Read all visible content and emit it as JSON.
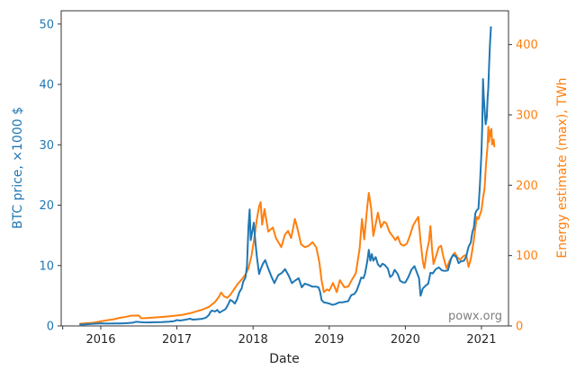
{
  "chart_data": {
    "type": "line",
    "title": "",
    "xlabel": "Date",
    "watermark": "powx.org",
    "grid": false,
    "legend": "none",
    "colors": {
      "btc": "#1f77b4",
      "energy": "#ff7f0e",
      "spine": "#343434",
      "x_tick_text": "#262626",
      "watermark": "#7f7f7f"
    },
    "axes": {
      "x": {
        "label": "Date",
        "lim": [
          2015.48,
          2021.355
        ],
        "tick_values": [
          2015.5,
          2016,
          2017,
          2018,
          2019,
          2020,
          2021
        ],
        "tick_labels": [
          "",
          "2016",
          "2017",
          "2018",
          "2019",
          "2020",
          "2021"
        ]
      },
      "left": {
        "label": "BTC price, ×1000 $",
        "color": "#1f77b4",
        "lim": [
          0,
          52.2
        ],
        "tick_values": [
          0,
          10,
          20,
          30,
          40,
          50
        ],
        "tick_labels": [
          "0",
          "10",
          "20",
          "30",
          "40",
          "50"
        ]
      },
      "right": {
        "label": "Energy estimate (max), TWh",
        "color": "#ff7f0e",
        "lim": [
          0,
          448
        ],
        "tick_values": [
          0,
          100,
          200,
          300,
          400
        ],
        "tick_labels": [
          "0",
          "100",
          "200",
          "300",
          "400"
        ]
      }
    },
    "series": [
      {
        "id": "energy",
        "name": "Energy estimate (max), TWh",
        "axis": "right",
        "color": "#ff7f0e",
        "points": [
          [
            2015.73,
            3
          ],
          [
            2015.82,
            4
          ],
          [
            2015.9,
            4.5
          ],
          [
            2016.0,
            6.5
          ],
          [
            2016.08,
            8
          ],
          [
            2016.17,
            9.5
          ],
          [
            2016.25,
            11.5
          ],
          [
            2016.33,
            13
          ],
          [
            2016.4,
            14.5
          ],
          [
            2016.5,
            14.8
          ],
          [
            2016.53,
            10.8
          ],
          [
            2016.62,
            11.3
          ],
          [
            2016.71,
            12
          ],
          [
            2016.8,
            12.8
          ],
          [
            2016.9,
            13.6
          ],
          [
            2017.0,
            14.8
          ],
          [
            2017.08,
            16
          ],
          [
            2017.17,
            18
          ],
          [
            2017.25,
            20.5
          ],
          [
            2017.33,
            23
          ],
          [
            2017.42,
            27
          ],
          [
            2017.5,
            34
          ],
          [
            2017.55,
            41
          ],
          [
            2017.58,
            47.5
          ],
          [
            2017.62,
            42
          ],
          [
            2017.66,
            40
          ],
          [
            2017.7,
            44
          ],
          [
            2017.75,
            52
          ],
          [
            2017.8,
            60
          ],
          [
            2017.85,
            66
          ],
          [
            2017.9,
            73
          ],
          [
            2017.94,
            82
          ],
          [
            2017.98,
            100
          ],
          [
            2018.02,
            128
          ],
          [
            2018.05,
            152
          ],
          [
            2018.08,
            170
          ],
          [
            2018.1,
            176
          ],
          [
            2018.12,
            144
          ],
          [
            2018.15,
            166
          ],
          [
            2018.2,
            134
          ],
          [
            2018.26,
            140
          ],
          [
            2018.3,
            125
          ],
          [
            2018.37,
            112
          ],
          [
            2018.42,
            130
          ],
          [
            2018.46,
            135
          ],
          [
            2018.5,
            125
          ],
          [
            2018.55,
            152
          ],
          [
            2018.58,
            140
          ],
          [
            2018.63,
            116
          ],
          [
            2018.68,
            112
          ],
          [
            2018.73,
            114
          ],
          [
            2018.78,
            119
          ],
          [
            2018.83,
            112
          ],
          [
            2018.87,
            91
          ],
          [
            2018.9,
            65
          ],
          [
            2018.93,
            48
          ],
          [
            2018.97,
            52
          ],
          [
            2019.0,
            50
          ],
          [
            2019.05,
            61
          ],
          [
            2019.1,
            48
          ],
          [
            2019.14,
            65
          ],
          [
            2019.2,
            55
          ],
          [
            2019.25,
            56
          ],
          [
            2019.3,
            66
          ],
          [
            2019.35,
            75
          ],
          [
            2019.4,
            110
          ],
          [
            2019.43,
            152
          ],
          [
            2019.46,
            123
          ],
          [
            2019.5,
            170
          ],
          [
            2019.52,
            189
          ],
          [
            2019.55,
            168
          ],
          [
            2019.58,
            128
          ],
          [
            2019.62,
            150
          ],
          [
            2019.64,
            161
          ],
          [
            2019.68,
            140
          ],
          [
            2019.72,
            148
          ],
          [
            2019.75,
            146
          ],
          [
            2019.79,
            134
          ],
          [
            2019.83,
            128
          ],
          [
            2019.87,
            122
          ],
          [
            2019.9,
            127
          ],
          [
            2019.94,
            116
          ],
          [
            2019.98,
            114
          ],
          [
            2020.02,
            117
          ],
          [
            2020.06,
            128
          ],
          [
            2020.1,
            142
          ],
          [
            2020.14,
            150
          ],
          [
            2020.17,
            155
          ],
          [
            2020.2,
            120
          ],
          [
            2020.23,
            92
          ],
          [
            2020.25,
            82
          ],
          [
            2020.28,
            105
          ],
          [
            2020.31,
            120
          ],
          [
            2020.33,
            142
          ],
          [
            2020.35,
            110
          ],
          [
            2020.37,
            88
          ],
          [
            2020.4,
            98
          ],
          [
            2020.44,
            112
          ],
          [
            2020.47,
            114
          ],
          [
            2020.5,
            98
          ],
          [
            2020.54,
            82
          ],
          [
            2020.58,
            92
          ],
          [
            2020.62,
            100
          ],
          [
            2020.65,
            104
          ],
          [
            2020.68,
            98
          ],
          [
            2020.72,
            94
          ],
          [
            2020.76,
            99
          ],
          [
            2020.8,
            101
          ],
          [
            2020.83,
            84
          ],
          [
            2020.86,
            95
          ],
          [
            2020.88,
            108
          ],
          [
            2020.9,
            122
          ],
          [
            2020.92,
            140
          ],
          [
            2020.94,
            155
          ],
          [
            2020.96,
            152
          ],
          [
            2020.98,
            158
          ],
          [
            2021.0,
            165
          ],
          [
            2021.02,
            182
          ],
          [
            2021.04,
            195
          ],
          [
            2021.06,
            230
          ],
          [
            2021.08,
            255
          ],
          [
            2021.09,
            283
          ],
          [
            2021.1,
            262
          ],
          [
            2021.11,
            278
          ],
          [
            2021.12,
            270
          ],
          [
            2021.13,
            280
          ],
          [
            2021.14,
            258
          ],
          [
            2021.16,
            265
          ],
          [
            2021.17,
            255
          ]
        ]
      },
      {
        "id": "btc",
        "name": "BTC price, ×1000 $",
        "axis": "left",
        "color": "#1f77b4",
        "points": [
          [
            2015.73,
            0.24
          ],
          [
            2015.8,
            0.26
          ],
          [
            2015.85,
            0.31
          ],
          [
            2015.9,
            0.36
          ],
          [
            2015.95,
            0.39
          ],
          [
            2016.0,
            0.43
          ],
          [
            2016.08,
            0.38
          ],
          [
            2016.17,
            0.41
          ],
          [
            2016.25,
            0.42
          ],
          [
            2016.33,
            0.45
          ],
          [
            2016.42,
            0.53
          ],
          [
            2016.46,
            0.68
          ],
          [
            2016.5,
            0.66
          ],
          [
            2016.55,
            0.6
          ],
          [
            2016.63,
            0.58
          ],
          [
            2016.71,
            0.61
          ],
          [
            2016.8,
            0.64
          ],
          [
            2016.9,
            0.71
          ],
          [
            2016.96,
            0.79
          ],
          [
            2017.0,
            0.96
          ],
          [
            2017.04,
            0.89
          ],
          [
            2017.1,
            1.0
          ],
          [
            2017.17,
            1.19
          ],
          [
            2017.21,
            1.04
          ],
          [
            2017.25,
            1.08
          ],
          [
            2017.33,
            1.18
          ],
          [
            2017.38,
            1.35
          ],
          [
            2017.42,
            1.8
          ],
          [
            2017.44,
            2.3
          ],
          [
            2017.46,
            2.55
          ],
          [
            2017.5,
            2.4
          ],
          [
            2017.53,
            2.65
          ],
          [
            2017.56,
            2.2
          ],
          [
            2017.6,
            2.5
          ],
          [
            2017.64,
            2.8
          ],
          [
            2017.67,
            3.5
          ],
          [
            2017.7,
            4.3
          ],
          [
            2017.73,
            4.1
          ],
          [
            2017.76,
            3.7
          ],
          [
            2017.79,
            4.4
          ],
          [
            2017.82,
            5.6
          ],
          [
            2017.85,
            6.2
          ],
          [
            2017.87,
            7.3
          ],
          [
            2017.9,
            8.0
          ],
          [
            2017.92,
            9.9
          ],
          [
            2017.94,
            16.5
          ],
          [
            2017.955,
            19.3
          ],
          [
            2017.97,
            14.2
          ],
          [
            2017.99,
            15.6
          ],
          [
            2018.01,
            17.1
          ],
          [
            2018.03,
            14.0
          ],
          [
            2018.05,
            11.5
          ],
          [
            2018.08,
            8.6
          ],
          [
            2018.1,
            9.4
          ],
          [
            2018.13,
            10.3
          ],
          [
            2018.16,
            10.9
          ],
          [
            2018.19,
            9.8
          ],
          [
            2018.24,
            8.2
          ],
          [
            2018.28,
            7.1
          ],
          [
            2018.33,
            8.4
          ],
          [
            2018.38,
            8.8
          ],
          [
            2018.42,
            9.4
          ],
          [
            2018.47,
            8.3
          ],
          [
            2018.51,
            7.1
          ],
          [
            2018.55,
            7.5
          ],
          [
            2018.6,
            7.9
          ],
          [
            2018.64,
            6.4
          ],
          [
            2018.68,
            7.0
          ],
          [
            2018.73,
            6.8
          ],
          [
            2018.78,
            6.5
          ],
          [
            2018.83,
            6.5
          ],
          [
            2018.86,
            6.4
          ],
          [
            2018.88,
            5.7
          ],
          [
            2018.9,
            4.3
          ],
          [
            2018.93,
            3.9
          ],
          [
            2018.97,
            3.8
          ],
          [
            2019.0,
            3.7
          ],
          [
            2019.04,
            3.5
          ],
          [
            2019.08,
            3.6
          ],
          [
            2019.13,
            3.9
          ],
          [
            2019.17,
            3.9
          ],
          [
            2019.21,
            4.0
          ],
          [
            2019.25,
            4.1
          ],
          [
            2019.29,
            5.1
          ],
          [
            2019.33,
            5.3
          ],
          [
            2019.36,
            5.8
          ],
          [
            2019.4,
            7.2
          ],
          [
            2019.42,
            8.0
          ],
          [
            2019.45,
            7.9
          ],
          [
            2019.47,
            8.6
          ],
          [
            2019.5,
            10.7
          ],
          [
            2019.52,
            12.6
          ],
          [
            2019.54,
            10.8
          ],
          [
            2019.56,
            11.9
          ],
          [
            2019.58,
            10.8
          ],
          [
            2019.61,
            11.4
          ],
          [
            2019.64,
            10.2
          ],
          [
            2019.67,
            9.8
          ],
          [
            2019.7,
            10.3
          ],
          [
            2019.73,
            10.1
          ],
          [
            2019.77,
            9.5
          ],
          [
            2019.8,
            8.1
          ],
          [
            2019.83,
            8.4
          ],
          [
            2019.86,
            9.3
          ],
          [
            2019.9,
            8.6
          ],
          [
            2019.93,
            7.5
          ],
          [
            2019.97,
            7.2
          ],
          [
            2020.0,
            7.2
          ],
          [
            2020.04,
            8.1
          ],
          [
            2020.08,
            9.3
          ],
          [
            2020.12,
            9.9
          ],
          [
            2020.15,
            8.9
          ],
          [
            2020.18,
            7.9
          ],
          [
            2020.2,
            5.0
          ],
          [
            2020.23,
            6.2
          ],
          [
            2020.27,
            6.7
          ],
          [
            2020.3,
            7.0
          ],
          [
            2020.33,
            8.8
          ],
          [
            2020.36,
            8.7
          ],
          [
            2020.4,
            9.4
          ],
          [
            2020.44,
            9.7
          ],
          [
            2020.48,
            9.2
          ],
          [
            2020.52,
            9.1
          ],
          [
            2020.56,
            9.2
          ],
          [
            2020.6,
            11.1
          ],
          [
            2020.63,
            11.8
          ],
          [
            2020.67,
            11.4
          ],
          [
            2020.7,
            10.4
          ],
          [
            2020.73,
            10.7
          ],
          [
            2020.77,
            10.8
          ],
          [
            2020.8,
            11.5
          ],
          [
            2020.83,
            13.1
          ],
          [
            2020.86,
            13.8
          ],
          [
            2020.88,
            15.5
          ],
          [
            2020.9,
            16.3
          ],
          [
            2020.92,
            18.7
          ],
          [
            2020.94,
            19.2
          ],
          [
            2020.96,
            19.4
          ],
          [
            2020.98,
            23.5
          ],
          [
            2021.0,
            28.9
          ],
          [
            2021.01,
            33.0
          ],
          [
            2021.02,
            40.9
          ],
          [
            2021.03,
            38.0
          ],
          [
            2021.045,
            35.0
          ],
          [
            2021.055,
            33.4
          ],
          [
            2021.07,
            34.5
          ],
          [
            2021.08,
            37.5
          ],
          [
            2021.09,
            39.5
          ],
          [
            2021.1,
            43.0
          ],
          [
            2021.11,
            46.3
          ],
          [
            2021.125,
            49.5
          ]
        ]
      }
    ]
  }
}
